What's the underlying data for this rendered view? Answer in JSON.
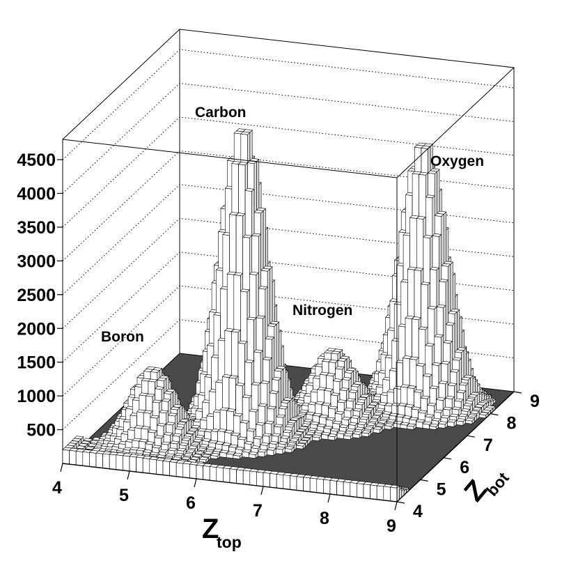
{
  "chart_data": {
    "type": "lego3d",
    "xlabel": {
      "main": "Z",
      "sub": "top"
    },
    "ylabel": {
      "main": "Z",
      "sub": "bot"
    },
    "x_ticks": [
      "4",
      "5",
      "6",
      "7",
      "8",
      "9"
    ],
    "y_ticks": [
      "4",
      "5",
      "6",
      "7",
      "8",
      "9"
    ],
    "z_ticks": [
      "500",
      "1000",
      "1500",
      "2000",
      "2500",
      "3000",
      "3500",
      "4000",
      "4500"
    ],
    "xlim": [
      4,
      9
    ],
    "ylim": [
      4,
      9
    ],
    "zlim": [
      0,
      4800
    ],
    "grid": true,
    "bin_width": 0.1,
    "peaks": [
      {
        "label": "Boron",
        "z_top": 5.0,
        "z_bot": 5.0,
        "height": 1200
      },
      {
        "label": "Carbon",
        "z_top": 6.0,
        "z_bot": 6.0,
        "height": 4600
      },
      {
        "label": "Nitrogen",
        "z_top": 7.0,
        "z_bot": 7.0,
        "height": 1050
      },
      {
        "label": "Oxygen",
        "z_top": 8.0,
        "z_bot": 8.0,
        "height": 3950
      }
    ],
    "peak_width": 0.32,
    "baseline_near_lower_edge": 250
  }
}
